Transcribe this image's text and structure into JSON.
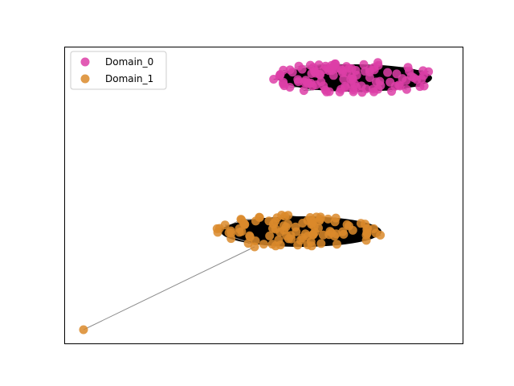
{
  "legend": {
    "entries": [
      {
        "label": "Domain_0",
        "color": "#dd3ea7"
      },
      {
        "label": "Domain_1",
        "color": "#da8a2a"
      }
    ]
  },
  "styles": {
    "node_edge": "#000000",
    "link_color": "#8c8c8c",
    "axes_frame": "#000000"
  }
}
